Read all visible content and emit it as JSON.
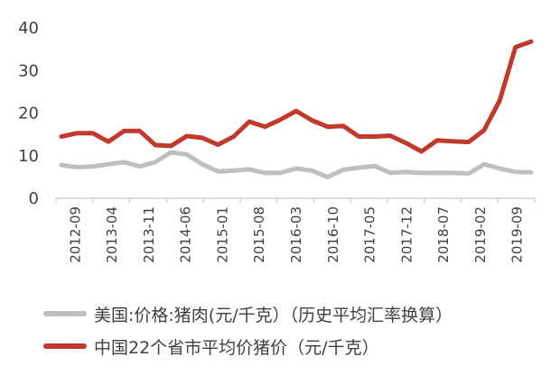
{
  "chart_data": {
    "type": "line",
    "title": "",
    "xlabel": "",
    "ylabel": "",
    "ylim": [
      0,
      40
    ],
    "yticks": [
      0,
      10,
      20,
      30,
      40
    ],
    "grid": false,
    "legend_position": "bottom",
    "x_tick_labels": [
      "2012-09",
      "2013-04",
      "2013-11",
      "2014-06",
      "2015-01",
      "2015-08",
      "2016-03",
      "2016-10",
      "2017-05",
      "2017-12",
      "2018-07",
      "2019-02",
      "2019-09"
    ],
    "x": [
      "2012-09",
      "2012-12",
      "2013-03",
      "2013-06",
      "2013-09",
      "2013-12",
      "2014-03",
      "2014-06",
      "2014-09",
      "2014-12",
      "2015-03",
      "2015-06",
      "2015-09",
      "2015-12",
      "2016-03",
      "2016-06",
      "2016-09",
      "2016-12",
      "2017-03",
      "2017-06",
      "2017-09",
      "2017-12",
      "2018-03",
      "2018-06",
      "2018-09",
      "2018-12",
      "2019-03",
      "2019-06",
      "2019-09",
      "2019-12",
      "2020-03"
    ],
    "series": [
      {
        "name": "美国:价格:猪肉(元/千克）（历史平均汇率换算）",
        "color": "#bfbfbf",
        "values": [
          7.8,
          7.3,
          7.5,
          8.0,
          8.5,
          7.5,
          8.5,
          10.8,
          10.3,
          8.0,
          6.3,
          6.5,
          6.8,
          6.0,
          6.0,
          7.0,
          6.5,
          5.0,
          6.7,
          7.2,
          7.6,
          6.0,
          6.2,
          6.0,
          6.0,
          6.0,
          5.8,
          8.0,
          7.0,
          6.2,
          6.1
        ]
      },
      {
        "name": "中国22个省市平均价猪价（元/千克）",
        "color": "#c0392b",
        "values": [
          14.5,
          15.3,
          15.3,
          13.3,
          15.8,
          15.8,
          12.5,
          12.3,
          14.6,
          14.2,
          12.6,
          14.5,
          18.0,
          16.8,
          18.5,
          20.5,
          18.3,
          16.8,
          17.0,
          14.5,
          14.5,
          14.7,
          13.0,
          11.0,
          13.6,
          13.4,
          13.2,
          16.0,
          23.0,
          35.5,
          36.8
        ]
      }
    ]
  },
  "legend": {
    "items": [
      {
        "label": "美国:价格:猪肉(元/千克）（历史平均汇率换算）",
        "color": "#bfbfbf"
      },
      {
        "label": "中国22个省市平均价猪价（元/千克）",
        "color": "#c0392b"
      }
    ]
  }
}
